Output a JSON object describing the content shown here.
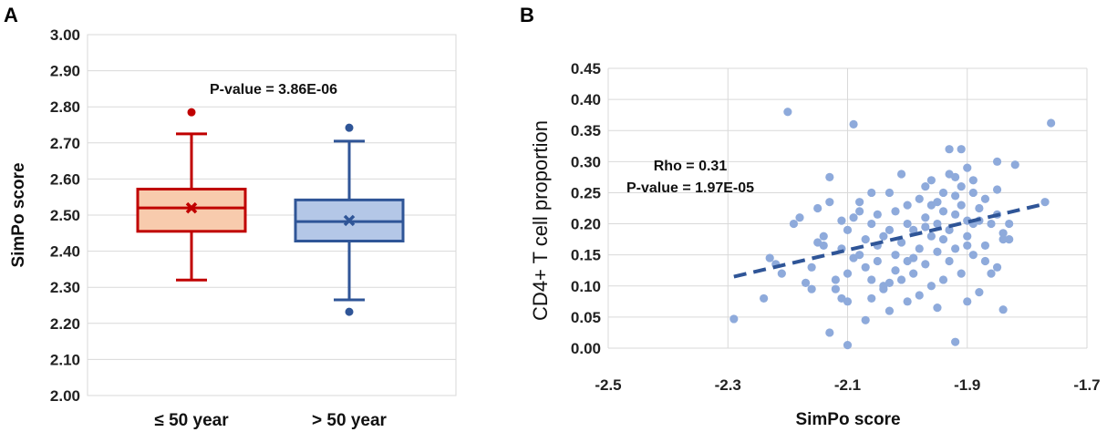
{
  "chart_data": [
    {
      "panel": "A",
      "type": "box",
      "ylabel": "SimPo score",
      "ylim": [
        2.0,
        3.0
      ],
      "yticks": [
        "3.00",
        "2.90",
        "2.80",
        "2.70",
        "2.60",
        "2.50",
        "2.40",
        "2.30",
        "2.20",
        "2.10",
        "2.00"
      ],
      "grid": true,
      "annotation": "P-value = 3.86E-06",
      "categories": [
        "≤ 50 year",
        "> 50 year"
      ],
      "boxes": [
        {
          "name": "≤ 50 year",
          "min": 2.32,
          "q1": 2.455,
          "median": 2.52,
          "q3": 2.572,
          "max": 2.725,
          "mean": 2.52,
          "outliers": [
            2.785
          ],
          "stroke": "#c00000",
          "fill": "#f8cbad"
        },
        {
          "name": "> 50 year",
          "min": 2.265,
          "q1": 2.428,
          "median": 2.482,
          "q3": 2.542,
          "max": 2.705,
          "mean": 2.485,
          "outliers": [
            2.742,
            2.232
          ],
          "stroke": "#2f5597",
          "fill": "#b4c7e7"
        }
      ]
    },
    {
      "panel": "B",
      "type": "scatter",
      "xlabel": "SimPo score",
      "ylabel": "CD4+  T cell proportion",
      "xlim": [
        -2.5,
        -1.7
      ],
      "ylim": [
        0.0,
        0.45
      ],
      "xticks": [
        "-2.5",
        "-2.3",
        "-2.1",
        "-1.9",
        "-1.7"
      ],
      "yticks": [
        "0.45",
        "0.40",
        "0.35",
        "0.30",
        "0.25",
        "0.20",
        "0.15",
        "0.10",
        "0.05",
        "0.00"
      ],
      "grid": true,
      "annotations": [
        "Rho = 0.31",
        "P-value = 1.97E-05"
      ],
      "point_color": "#8eaadb",
      "trend_color": "#2f5597",
      "trendline": {
        "x": [
          -2.29,
          -1.77
        ],
        "y": [
          0.115,
          0.232
        ]
      },
      "points": [
        [
          -2.29,
          0.047
        ],
        [
          -2.24,
          0.08
        ],
        [
          -2.23,
          0.145
        ],
        [
          -2.22,
          0.135
        ],
        [
          -2.2,
          0.38
        ],
        [
          -2.19,
          0.2
        ],
        [
          -2.18,
          0.21
        ],
        [
          -2.17,
          0.105
        ],
        [
          -2.16,
          0.13
        ],
        [
          -2.15,
          0.225
        ],
        [
          -2.14,
          0.165
        ],
        [
          -2.14,
          0.18
        ],
        [
          -2.13,
          0.235
        ],
        [
          -2.13,
          0.275
        ],
        [
          -2.13,
          0.025
        ],
        [
          -2.12,
          0.11
        ],
        [
          -2.12,
          0.095
        ],
        [
          -2.11,
          0.16
        ],
        [
          -2.11,
          0.205
        ],
        [
          -2.11,
          0.08
        ],
        [
          -2.1,
          0.19
        ],
        [
          -2.1,
          0.075
        ],
        [
          -2.1,
          0.12
        ],
        [
          -2.1,
          0.005
        ],
        [
          -2.09,
          0.36
        ],
        [
          -2.09,
          0.21
        ],
        [
          -2.09,
          0.145
        ],
        [
          -2.08,
          0.15
        ],
        [
          -2.08,
          0.22
        ],
        [
          -2.07,
          0.175
        ],
        [
          -2.07,
          0.045
        ],
        [
          -2.07,
          0.13
        ],
        [
          -2.06,
          0.11
        ],
        [
          -2.06,
          0.08
        ],
        [
          -2.06,
          0.2
        ],
        [
          -2.05,
          0.215
        ],
        [
          -2.05,
          0.165
        ],
        [
          -2.05,
          0.14
        ],
        [
          -2.04,
          0.1
        ],
        [
          -2.04,
          0.095
        ],
        [
          -2.04,
          0.18
        ],
        [
          -2.03,
          0.19
        ],
        [
          -2.03,
          0.25
        ],
        [
          -2.03,
          0.06
        ],
        [
          -2.02,
          0.125
        ],
        [
          -2.02,
          0.22
        ],
        [
          -2.02,
          0.15
        ],
        [
          -2.01,
          0.28
        ],
        [
          -2.01,
          0.17
        ],
        [
          -2.01,
          0.11
        ],
        [
          -2.0,
          0.2
        ],
        [
          -2.0,
          0.23
        ],
        [
          -2.0,
          0.075
        ],
        [
          -1.99,
          0.19
        ],
        [
          -1.99,
          0.145
        ],
        [
          -1.99,
          0.12
        ],
        [
          -1.98,
          0.24
        ],
        [
          -1.98,
          0.16
        ],
        [
          -1.98,
          0.085
        ],
        [
          -1.97,
          0.21
        ],
        [
          -1.97,
          0.26
        ],
        [
          -1.97,
          0.135
        ],
        [
          -1.96,
          0.18
        ],
        [
          -1.96,
          0.23
        ],
        [
          -1.96,
          0.1
        ],
        [
          -1.96,
          0.27
        ],
        [
          -1.95,
          0.2
        ],
        [
          -1.95,
          0.155
        ],
        [
          -1.95,
          0.065
        ],
        [
          -1.94,
          0.25
        ],
        [
          -1.94,
          0.22
        ],
        [
          -1.94,
          0.175
        ],
        [
          -1.93,
          0.32
        ],
        [
          -1.93,
          0.28
        ],
        [
          -1.93,
          0.19
        ],
        [
          -1.93,
          0.14
        ],
        [
          -1.92,
          0.245
        ],
        [
          -1.92,
          0.215
        ],
        [
          -1.92,
          0.16
        ],
        [
          -1.92,
          0.01
        ],
        [
          -1.91,
          0.32
        ],
        [
          -1.91,
          0.26
        ],
        [
          -1.91,
          0.23
        ],
        [
          -1.91,
          0.12
        ],
        [
          -1.9,
          0.29
        ],
        [
          -1.9,
          0.205
        ],
        [
          -1.9,
          0.18
        ],
        [
          -1.9,
          0.075
        ],
        [
          -1.89,
          0.27
        ],
        [
          -1.89,
          0.25
        ],
        [
          -1.89,
          0.2
        ],
        [
          -1.89,
          0.15
        ],
        [
          -1.88,
          0.225
        ],
        [
          -1.88,
          0.09
        ],
        [
          -1.87,
          0.24
        ],
        [
          -1.87,
          0.165
        ],
        [
          -1.86,
          0.2
        ],
        [
          -1.86,
          0.12
        ],
        [
          -1.85,
          0.3
        ],
        [
          -1.85,
          0.255
        ],
        [
          -1.85,
          0.215
        ],
        [
          -1.84,
          0.175
        ],
        [
          -1.84,
          0.185
        ],
        [
          -1.84,
          0.062
        ],
        [
          -1.83,
          0.2
        ],
        [
          -1.82,
          0.295
        ],
        [
          -1.85,
          0.13
        ],
        [
          -1.77,
          0.235
        ],
        [
          -1.76,
          0.362
        ],
        [
          -2.21,
          0.12
        ],
        [
          -2.16,
          0.095
        ],
        [
          -2.15,
          0.17
        ],
        [
          -2.08,
          0.235
        ],
        [
          -2.06,
          0.25
        ],
        [
          -2.03,
          0.105
        ],
        [
          -2.0,
          0.14
        ],
        [
          -1.97,
          0.195
        ],
        [
          -1.95,
          0.235
        ],
        [
          -1.94,
          0.11
        ],
        [
          -1.92,
          0.275
        ],
        [
          -1.9,
          0.165
        ],
        [
          -1.88,
          0.205
        ],
        [
          -1.87,
          0.14
        ],
        [
          -1.83,
          0.175
        ]
      ]
    }
  ],
  "panels": {
    "a": "A",
    "b": "B"
  }
}
